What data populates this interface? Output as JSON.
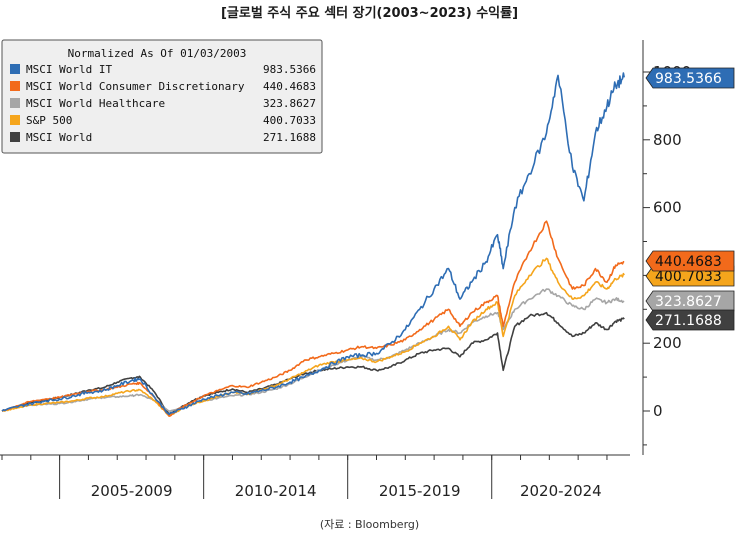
{
  "title": "[글로벌 주식 주요 섹터 장기(2003~2023) 수익률]",
  "source": "(자료 : Bloomberg)",
  "chart_data": {
    "type": "line",
    "title": "[글로벌 주식 주요 섹터 장기(2003~2023) 수익률]",
    "legend_title": "Normalized As Of 01/03/2003",
    "legend_position": "top-left",
    "y_axis_position": "right",
    "ylim": [
      -90,
      1080
    ],
    "y_ticks": [
      0,
      200,
      400,
      600,
      800,
      1000
    ],
    "y_tick_labels": [
      "0",
      "200",
      "400",
      "600",
      "800",
      "1000"
    ],
    "xlim": [
      2003.0,
      2024.8
    ],
    "period_labels": [
      "2005-2009",
      "2010-2014",
      "2015-2019",
      "2020-2024"
    ],
    "x": [
      2003.0,
      2003.5,
      2004.0,
      2004.5,
      2005.0,
      2005.5,
      2006.0,
      2006.5,
      2007.0,
      2007.5,
      2007.8,
      2008.3,
      2008.8,
      2009.2,
      2009.6,
      2010.0,
      2010.5,
      2011.0,
      2011.5,
      2012.0,
      2012.5,
      2013.0,
      2013.5,
      2014.0,
      2014.5,
      2015.0,
      2015.5,
      2016.0,
      2016.5,
      2017.0,
      2017.5,
      2018.0,
      2018.5,
      2018.9,
      2019.3,
      2019.8,
      2020.2,
      2020.4,
      2020.8,
      2021.3,
      2021.9,
      2022.3,
      2022.8,
      2023.2,
      2023.6,
      2024.0,
      2024.3,
      2024.6
    ],
    "series": [
      {
        "name": "MSCI World IT",
        "last_value": "983.5366",
        "color": "#2e6db4",
        "values": [
          0,
          12,
          22,
          30,
          35,
          45,
          55,
          60,
          75,
          90,
          95,
          40,
          -10,
          5,
          20,
          35,
          45,
          55,
          50,
          60,
          70,
          85,
          100,
          120,
          140,
          160,
          165,
          170,
          200,
          240,
          300,
          360,
          420,
          330,
          380,
          440,
          520,
          420,
          600,
          700,
          820,
          990,
          720,
          620,
          820,
          900,
          960,
          984
        ]
      },
      {
        "name": "MSCI World Consumer Discretionary",
        "last_value": "440.4683",
        "color": "#f26a1b",
        "values": [
          0,
          15,
          28,
          35,
          40,
          50,
          58,
          62,
          70,
          80,
          82,
          40,
          -15,
          10,
          25,
          45,
          60,
          75,
          70,
          85,
          100,
          120,
          150,
          160,
          170,
          180,
          190,
          185,
          195,
          210,
          240,
          270,
          300,
          250,
          290,
          320,
          340,
          250,
          380,
          470,
          560,
          450,
          360,
          370,
          420,
          380,
          430,
          440
        ]
      },
      {
        "name": "MSCI World Healthcare",
        "last_value": "323.8627",
        "color": "#a6a6a6",
        "values": [
          0,
          10,
          18,
          20,
          22,
          28,
          35,
          40,
          42,
          45,
          48,
          30,
          0,
          10,
          20,
          30,
          38,
          45,
          48,
          55,
          65,
          80,
          100,
          120,
          135,
          150,
          160,
          150,
          160,
          180,
          200,
          220,
          240,
          230,
          260,
          280,
          290,
          240,
          300,
          330,
          360,
          340,
          310,
          300,
          330,
          320,
          330,
          324
        ]
      },
      {
        "name": "S&P 500",
        "last_value": "400.7033",
        "color": "#f5a51c",
        "values": [
          0,
          8,
          18,
          22,
          25,
          30,
          38,
          42,
          52,
          60,
          62,
          30,
          -15,
          5,
          20,
          30,
          42,
          55,
          50,
          62,
          75,
          95,
          115,
          135,
          145,
          150,
          155,
          145,
          160,
          175,
          200,
          220,
          250,
          210,
          260,
          300,
          320,
          220,
          340,
          400,
          450,
          380,
          330,
          340,
          380,
          360,
          390,
          401
        ]
      },
      {
        "name": "MSCI World",
        "last_value": "271.1688",
        "color": "#404040",
        "values": [
          0,
          12,
          25,
          32,
          40,
          50,
          62,
          68,
          85,
          98,
          100,
          55,
          -10,
          10,
          30,
          45,
          55,
          65,
          55,
          65,
          78,
          95,
          110,
          120,
          125,
          130,
          130,
          120,
          130,
          150,
          170,
          180,
          185,
          160,
          200,
          210,
          230,
          120,
          250,
          280,
          290,
          260,
          220,
          230,
          260,
          240,
          265,
          271
        ]
      }
    ]
  }
}
